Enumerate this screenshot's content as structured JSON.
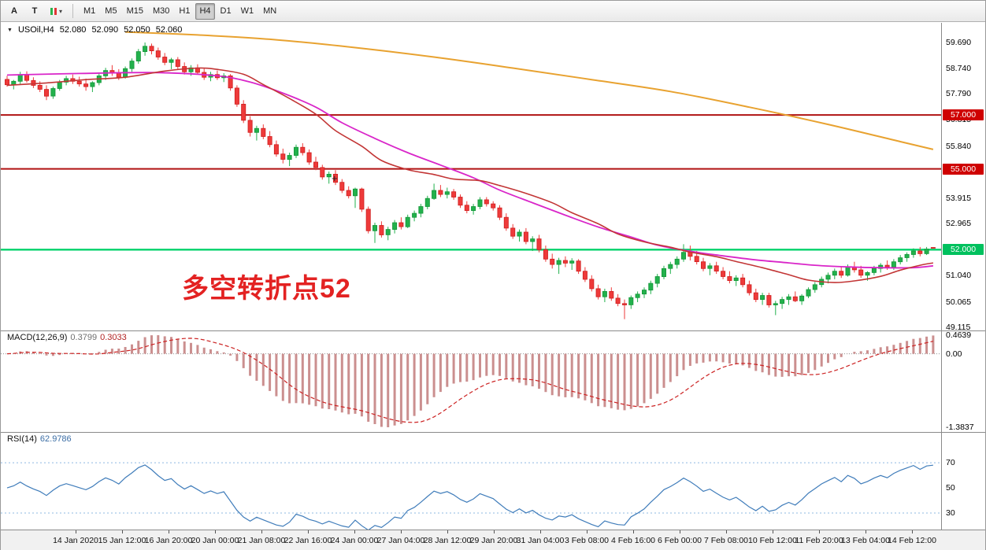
{
  "toolbar": {
    "tools": [
      {
        "name": "arrow-tool",
        "label": "A"
      },
      {
        "name": "text-tool",
        "label": "T"
      },
      {
        "name": "objects-dropdown",
        "label": "",
        "caret": "▾"
      }
    ],
    "timeframes": [
      "M1",
      "M5",
      "M15",
      "M30",
      "H1",
      "H4",
      "D1",
      "W1",
      "MN"
    ],
    "selected_timeframe": "H4"
  },
  "chart": {
    "title": {
      "marker": "▼",
      "symbol_period": "USOil,H4",
      "open": "52.080",
      "high": "52.090",
      "low": "52.050",
      "close": "52.060"
    },
    "annotation": {
      "text": "多空转折点52",
      "color": "#e32222"
    },
    "crosshair_marker": "+",
    "price_axis_labels": [
      {
        "text": "59.690",
        "value": 59.69
      },
      {
        "text": "58.740",
        "value": 58.74
      },
      {
        "text": "57.790",
        "value": 57.79
      },
      {
        "text": "56.815",
        "value": 56.815
      },
      {
        "text": "55.840",
        "value": 55.84
      },
      {
        "text": "53.915",
        "value": 53.915
      },
      {
        "text": "52.965",
        "value": 52.965
      },
      {
        "text": "51.040",
        "value": 51.04
      },
      {
        "text": "50.065",
        "value": 50.065
      },
      {
        "text": "49.115",
        "value": 49.115
      }
    ],
    "price_lines": [
      {
        "value": 57.0,
        "label": "57.000",
        "color": "#b01212",
        "badge_color": "#cf0000",
        "width": 2
      },
      {
        "value": 55.0,
        "label": "55.000",
        "color": "#b01212",
        "badge_color": "#cf0000",
        "width": 2
      },
      {
        "value": 52.0,
        "label": "52.000",
        "color": "#00d26a",
        "badge_color": "#00c15e",
        "width": 2.4
      }
    ]
  },
  "macd": {
    "header": "MACD(12,26,9)",
    "value_main": "0.3799",
    "value_signal": "0.3033",
    "axis_labels": [
      "0.4639",
      "0.00",
      "-1.3837"
    ],
    "params": {
      "fast": 12,
      "slow": 26,
      "signal": 9
    }
  },
  "rsi": {
    "header": "RSI(14)",
    "value": "62.9786",
    "levels": [
      70,
      50,
      30
    ],
    "levels_dashed": [
      70,
      30
    ],
    "axis_labels": [
      "70",
      "50",
      "30"
    ]
  },
  "time_axis": [
    "14 Jan 2020",
    "15 Jan 12:00",
    "16 Jan 20:00",
    "20 Jan 00:00",
    "21 Jan 08:00",
    "22 Jan 16:00",
    "24 Jan 00:00",
    "27 Jan 04:00",
    "28 Jan 12:00",
    "29 Jan 20:00",
    "31 Jan 04:00",
    "3 Feb 08:00",
    "4 Feb 16:00",
    "6 Feb 00:00",
    "7 Feb 08:00",
    "10 Feb 12:00",
    "11 Feb 20:00",
    "13 Feb 04:00",
    "14 Feb 12:00"
  ],
  "colors": {
    "candle_up": "#22b14c",
    "candle_up_border": "#149638",
    "candle_down": "#ee3a3a",
    "candle_down_border": "#cf1f1f",
    "macd_histogram": "#cb8f8f",
    "macd_signal": "#cc2222",
    "rsi_line": "#3f7cba",
    "rsi_level": "#8cb8e2"
  },
  "chart_data": {
    "type": "candlestick+indicators",
    "symbol": "USOil",
    "period": "H4",
    "y_range": [
      49.0,
      60.42
    ],
    "ohlc": [
      [
        58.32,
        58.45,
        58.05,
        58.12
      ],
      [
        58.12,
        58.3,
        57.95,
        58.25
      ],
      [
        58.25,
        58.6,
        58.15,
        58.5
      ],
      [
        58.5,
        58.62,
        58.2,
        58.28
      ],
      [
        58.28,
        58.4,
        58.0,
        58.1
      ],
      [
        58.1,
        58.25,
        57.85,
        57.95
      ],
      [
        57.95,
        58.1,
        57.55,
        57.7
      ],
      [
        57.7,
        58.05,
        57.6,
        57.98
      ],
      [
        57.98,
        58.3,
        57.9,
        58.22
      ],
      [
        58.22,
        58.45,
        58.1,
        58.35
      ],
      [
        58.35,
        58.5,
        58.15,
        58.25
      ],
      [
        58.25,
        58.42,
        58.05,
        58.15
      ],
      [
        58.15,
        58.35,
        57.9,
        58.05
      ],
      [
        58.05,
        58.25,
        57.85,
        58.2
      ],
      [
        58.2,
        58.55,
        58.1,
        58.45
      ],
      [
        58.45,
        58.75,
        58.3,
        58.65
      ],
      [
        58.65,
        58.85,
        58.45,
        58.55
      ],
      [
        58.55,
        58.7,
        58.3,
        58.4
      ],
      [
        58.4,
        58.8,
        58.35,
        58.72
      ],
      [
        58.72,
        59.1,
        58.6,
        59.0
      ],
      [
        59.0,
        59.45,
        58.9,
        59.35
      ],
      [
        59.35,
        59.69,
        59.2,
        59.55
      ],
      [
        59.55,
        59.65,
        59.25,
        59.38
      ],
      [
        59.38,
        59.5,
        59.05,
        59.15
      ],
      [
        59.15,
        59.3,
        58.85,
        58.95
      ],
      [
        58.95,
        59.12,
        58.7,
        59.05
      ],
      [
        59.05,
        59.15,
        58.7,
        58.8
      ],
      [
        58.8,
        58.95,
        58.5,
        58.6
      ],
      [
        58.6,
        58.85,
        58.45,
        58.75
      ],
      [
        58.75,
        58.88,
        58.5,
        58.58
      ],
      [
        58.58,
        58.72,
        58.3,
        58.4
      ],
      [
        58.4,
        58.6,
        58.25,
        58.5
      ],
      [
        58.5,
        58.65,
        58.3,
        58.38
      ],
      [
        58.38,
        58.55,
        58.22,
        58.45
      ],
      [
        58.45,
        58.52,
        57.9,
        58.0
      ],
      [
        58.0,
        58.1,
        57.3,
        57.4
      ],
      [
        57.4,
        57.55,
        56.7,
        56.8
      ],
      [
        56.8,
        56.95,
        56.2,
        56.35
      ],
      [
        56.35,
        56.6,
        56.05,
        56.5
      ],
      [
        56.5,
        56.65,
        56.1,
        56.2
      ],
      [
        56.2,
        56.4,
        55.8,
        55.9
      ],
      [
        55.9,
        56.05,
        55.45,
        55.55
      ],
      [
        55.55,
        55.75,
        55.2,
        55.35
      ],
      [
        55.35,
        55.6,
        55.1,
        55.5
      ],
      [
        55.5,
        55.9,
        55.4,
        55.8
      ],
      [
        55.8,
        55.95,
        55.5,
        55.6
      ],
      [
        55.6,
        55.72,
        55.15,
        55.25
      ],
      [
        55.25,
        55.45,
        54.95,
        55.05
      ],
      [
        55.05,
        55.15,
        54.6,
        54.7
      ],
      [
        54.7,
        54.9,
        54.45,
        54.8
      ],
      [
        54.8,
        54.95,
        54.4,
        54.5
      ],
      [
        54.5,
        54.62,
        54.1,
        54.2
      ],
      [
        54.2,
        54.35,
        53.9,
        54.0
      ],
      [
        54.0,
        54.3,
        53.55,
        54.25
      ],
      [
        54.25,
        54.3,
        53.4,
        53.5
      ],
      [
        53.5,
        53.6,
        52.6,
        52.7
      ],
      [
        52.7,
        53.0,
        52.25,
        52.9
      ],
      [
        52.9,
        53.05,
        52.45,
        52.55
      ],
      [
        52.55,
        52.85,
        52.35,
        52.75
      ],
      [
        52.75,
        53.1,
        52.6,
        53.0
      ],
      [
        53.0,
        53.2,
        52.75,
        52.85
      ],
      [
        52.85,
        53.3,
        52.8,
        53.2
      ],
      [
        53.2,
        53.45,
        53.05,
        53.35
      ],
      [
        53.35,
        53.7,
        53.2,
        53.6
      ],
      [
        53.6,
        54.0,
        53.5,
        53.9
      ],
      [
        53.9,
        54.45,
        53.85,
        54.2
      ],
      [
        54.2,
        54.4,
        53.95,
        54.05
      ],
      [
        54.05,
        54.3,
        53.9,
        54.15
      ],
      [
        54.15,
        54.25,
        53.85,
        53.95
      ],
      [
        53.95,
        54.05,
        53.55,
        53.65
      ],
      [
        53.65,
        53.8,
        53.35,
        53.45
      ],
      [
        53.45,
        53.7,
        53.3,
        53.6
      ],
      [
        53.6,
        53.95,
        53.5,
        53.85
      ],
      [
        53.85,
        53.95,
        53.6,
        53.7
      ],
      [
        53.7,
        53.8,
        53.45,
        53.55
      ],
      [
        53.55,
        53.65,
        53.1,
        53.2
      ],
      [
        53.2,
        53.35,
        52.7,
        52.8
      ],
      [
        52.8,
        52.95,
        52.4,
        52.5
      ],
      [
        52.5,
        52.75,
        52.3,
        52.65
      ],
      [
        52.65,
        52.8,
        52.2,
        52.3
      ],
      [
        52.3,
        52.5,
        51.95,
        52.4
      ],
      [
        52.4,
        52.55,
        51.9,
        52.0
      ],
      [
        52.0,
        52.15,
        51.55,
        51.65
      ],
      [
        51.65,
        51.85,
        51.3,
        51.45
      ],
      [
        51.45,
        51.7,
        51.1,
        51.6
      ],
      [
        51.6,
        51.75,
        51.35,
        51.5
      ],
      [
        51.5,
        51.68,
        51.25,
        51.58
      ],
      [
        51.58,
        51.65,
        51.1,
        51.2
      ],
      [
        51.2,
        51.35,
        50.8,
        50.9
      ],
      [
        50.9,
        51.05,
        50.45,
        50.55
      ],
      [
        50.55,
        50.7,
        50.15,
        50.25
      ],
      [
        50.25,
        50.55,
        50.05,
        50.45
      ],
      [
        50.45,
        50.6,
        50.1,
        50.2
      ],
      [
        50.2,
        50.35,
        49.9,
        50.0
      ],
      [
        50.0,
        50.15,
        49.42,
        49.95
      ],
      [
        49.95,
        50.3,
        49.8,
        50.22
      ],
      [
        50.22,
        50.45,
        50.05,
        50.35
      ],
      [
        50.35,
        50.6,
        50.2,
        50.5
      ],
      [
        50.5,
        50.85,
        50.35,
        50.75
      ],
      [
        50.75,
        51.1,
        50.6,
        51.0
      ],
      [
        51.0,
        51.4,
        50.9,
        51.3
      ],
      [
        51.3,
        51.55,
        51.1,
        51.45
      ],
      [
        51.45,
        51.75,
        51.3,
        51.65
      ],
      [
        51.65,
        52.2,
        51.55,
        51.9
      ],
      [
        51.9,
        52.15,
        51.6,
        51.75
      ],
      [
        51.75,
        51.95,
        51.45,
        51.55
      ],
      [
        51.55,
        51.7,
        51.2,
        51.3
      ],
      [
        51.3,
        51.5,
        51.05,
        51.4
      ],
      [
        51.4,
        51.55,
        51.1,
        51.2
      ],
      [
        51.2,
        51.35,
        50.9,
        51.0
      ],
      [
        51.0,
        51.2,
        50.75,
        50.85
      ],
      [
        50.85,
        51.05,
        50.65,
        50.95
      ],
      [
        50.95,
        51.1,
        50.6,
        50.7
      ],
      [
        50.7,
        50.85,
        50.3,
        50.4
      ],
      [
        50.4,
        50.55,
        50.05,
        50.15
      ],
      [
        50.15,
        50.4,
        49.95,
        50.3
      ],
      [
        50.3,
        50.4,
        49.85,
        49.95
      ],
      [
        49.95,
        50.1,
        49.57,
        50.0
      ],
      [
        50.0,
        50.25,
        49.8,
        50.15
      ],
      [
        50.15,
        50.35,
        49.95,
        50.25
      ],
      [
        50.25,
        50.45,
        50.05,
        50.1
      ],
      [
        50.1,
        50.35,
        49.95,
        50.28
      ],
      [
        50.28,
        50.6,
        50.2,
        50.52
      ],
      [
        50.52,
        50.8,
        50.4,
        50.7
      ],
      [
        50.7,
        51.0,
        50.6,
        50.9
      ],
      [
        50.9,
        51.15,
        50.75,
        51.05
      ],
      [
        51.05,
        51.3,
        50.9,
        51.2
      ],
      [
        51.2,
        51.35,
        50.95,
        51.05
      ],
      [
        51.05,
        51.45,
        51.0,
        51.35
      ],
      [
        51.35,
        51.55,
        51.15,
        51.25
      ],
      [
        51.25,
        51.4,
        50.95,
        51.05
      ],
      [
        51.05,
        51.2,
        50.85,
        51.15
      ],
      [
        51.15,
        51.4,
        51.05,
        51.3
      ],
      [
        51.3,
        51.5,
        51.15,
        51.42
      ],
      [
        51.42,
        51.6,
        51.25,
        51.35
      ],
      [
        51.35,
        51.65,
        51.25,
        51.55
      ],
      [
        51.55,
        51.8,
        51.45,
        51.7
      ],
      [
        51.7,
        51.9,
        51.55,
        51.82
      ],
      [
        51.82,
        52.05,
        51.7,
        51.95
      ],
      [
        51.95,
        52.1,
        51.75,
        51.85
      ],
      [
        51.85,
        52.1,
        51.8,
        52.02
      ],
      [
        52.08,
        52.09,
        52.05,
        52.06
      ]
    ],
    "moving_averages": [
      {
        "name": "ma-slow-orange-line",
        "color": "#e8a230",
        "width": 2,
        "points": [
          [
            18,
            60.08
          ],
          [
            29,
            59.97
          ],
          [
            41,
            59.79
          ],
          [
            53,
            59.5
          ],
          [
            65,
            59.15
          ],
          [
            77,
            58.74
          ],
          [
            89,
            58.31
          ],
          [
            101,
            57.87
          ],
          [
            113,
            57.29
          ],
          [
            125,
            56.65
          ],
          [
            136,
            56.01
          ],
          [
            141,
            55.72
          ]
        ]
      },
      {
        "name": "ma-medium-magenta-line",
        "color": "#d926c9",
        "width": 1.8,
        "points": [
          [
            0,
            58.48
          ],
          [
            11,
            58.54
          ],
          [
            23,
            58.57
          ],
          [
            32,
            58.45
          ],
          [
            37,
            58.22
          ],
          [
            42,
            57.81
          ],
          [
            47,
            57.29
          ],
          [
            51,
            56.71
          ],
          [
            56,
            56.13
          ],
          [
            61,
            55.6
          ],
          [
            66,
            55.14
          ],
          [
            71,
            54.67
          ],
          [
            75,
            54.21
          ],
          [
            80,
            53.74
          ],
          [
            85,
            53.28
          ],
          [
            90,
            52.84
          ],
          [
            95,
            52.47
          ],
          [
            99,
            52.17
          ],
          [
            104,
            51.94
          ],
          [
            109,
            51.77
          ],
          [
            114,
            51.62
          ],
          [
            119,
            51.51
          ],
          [
            123,
            51.42
          ],
          [
            128,
            51.36
          ],
          [
            133,
            51.33
          ],
          [
            138,
            51.33
          ],
          [
            141,
            51.4
          ]
        ]
      },
      {
        "name": "ma-fast-red-line",
        "color": "#c23535",
        "width": 1.6,
        "points": [
          [
            0,
            58.1
          ],
          [
            6,
            58.19
          ],
          [
            12,
            58.31
          ],
          [
            18,
            58.4
          ],
          [
            24,
            58.63
          ],
          [
            29,
            58.74
          ],
          [
            32,
            58.69
          ],
          [
            36,
            58.51
          ],
          [
            39,
            58.13
          ],
          [
            43,
            57.61
          ],
          [
            47,
            57.03
          ],
          [
            50,
            56.42
          ],
          [
            54,
            55.84
          ],
          [
            57,
            55.31
          ],
          [
            61,
            54.97
          ],
          [
            65,
            54.79
          ],
          [
            68,
            54.62
          ],
          [
            72,
            54.56
          ],
          [
            75,
            54.38
          ],
          [
            79,
            54.09
          ],
          [
            83,
            53.74
          ],
          [
            86,
            53.37
          ],
          [
            90,
            52.96
          ],
          [
            93,
            52.58
          ],
          [
            97,
            52.29
          ],
          [
            101,
            52.09
          ],
          [
            104,
            51.91
          ],
          [
            108,
            51.74
          ],
          [
            111,
            51.56
          ],
          [
            115,
            51.33
          ],
          [
            119,
            51.07
          ],
          [
            122,
            50.87
          ],
          [
            126,
            50.78
          ],
          [
            129,
            50.84
          ],
          [
            133,
            51.01
          ],
          [
            136,
            51.24
          ],
          [
            139,
            51.42
          ],
          [
            141,
            51.51
          ]
        ]
      }
    ]
  }
}
